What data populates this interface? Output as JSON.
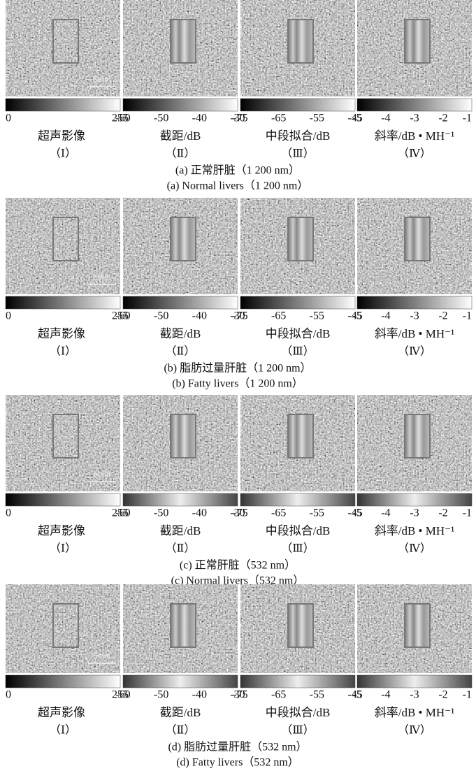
{
  "figure": {
    "rows": [
      {
        "panels": [
          {
            "label": "超声影像",
            "numeral": "（Ⅰ）",
            "ticks": [
              0,
              255
            ]
          },
          {
            "label": "截距/dB",
            "numeral": "（Ⅱ）",
            "ticks": [
              -60,
              -50,
              -40,
              -30
            ]
          },
          {
            "label": "中段拟合/dB",
            "numeral": "（Ⅲ）",
            "ticks": [
              -75,
              -65,
              -55,
              -45
            ]
          },
          {
            "label": "斜率/dB • MH⁻¹",
            "numeral": "（Ⅳ）",
            "ticks": [
              -5,
              -4,
              -3,
              -2,
              -1
            ]
          }
        ],
        "scale_bar": "5mm",
        "caption_cn": "(a) 正常肝脏（1 200 nm）",
        "caption_en": "(a) Normal livers（1 200 nm）"
      },
      {
        "panels": [
          {
            "label": "超声影像",
            "numeral": "（Ⅰ）",
            "ticks": [
              0,
              255
            ]
          },
          {
            "label": "截距/dB",
            "numeral": "（Ⅱ）",
            "ticks": [
              -60,
              -50,
              -40,
              -30
            ]
          },
          {
            "label": "中段拟合/dB",
            "numeral": "（Ⅲ）",
            "ticks": [
              -75,
              -65,
              -55,
              -45
            ]
          },
          {
            "label": "斜率/dB • MH⁻¹",
            "numeral": "（Ⅳ）",
            "ticks": [
              -5,
              -4,
              -3,
              -2,
              -1
            ]
          }
        ],
        "scale_bar": "5mm",
        "caption_cn": "(b) 脂肪过量肝脏（1 200 nm）",
        "caption_en": "(b) Fatty livers（1 200 nm）"
      },
      {
        "panels": [
          {
            "label": "超声影像",
            "numeral": "（Ⅰ）",
            "ticks": [
              0,
              255
            ]
          },
          {
            "label": "截距/dB",
            "numeral": "（Ⅱ）",
            "ticks": [
              -60,
              -50,
              -40,
              -30
            ]
          },
          {
            "label": "中段拟合/dB",
            "numeral": "（Ⅲ）",
            "ticks": [
              -75,
              -65,
              -55,
              -45
            ]
          },
          {
            "label": "斜率/dB • MH⁻¹",
            "numeral": "（Ⅳ）",
            "ticks": [
              -5,
              -4,
              -3,
              -2,
              -1
            ]
          }
        ],
        "scale_bar": "5mm",
        "caption_cn": "(c) 正常肝脏（532 nm）",
        "caption_en": "(c) Normal livers（532 nm）"
      },
      {
        "panels": [
          {
            "label": "超声影像",
            "numeral": "（Ⅰ）",
            "ticks": [
              0,
              255
            ]
          },
          {
            "label": "截距/dB",
            "numeral": "（Ⅱ）",
            "ticks": [
              -60,
              -50,
              -40,
              -30
            ]
          },
          {
            "label": "中段拟合/dB",
            "numeral": "（Ⅲ）",
            "ticks": [
              -75,
              -65,
              -55,
              -45
            ]
          },
          {
            "label": "斜率/dB • MH⁻¹",
            "numeral": "（Ⅳ）",
            "ticks": [
              -5,
              -4,
              -3,
              -2,
              -1
            ]
          }
        ],
        "scale_bar": "5mm",
        "caption_cn": "(d) 脂肪过量肝脏（532 nm）",
        "caption_en": "(d) Fatty livers（532 nm）"
      }
    ]
  }
}
